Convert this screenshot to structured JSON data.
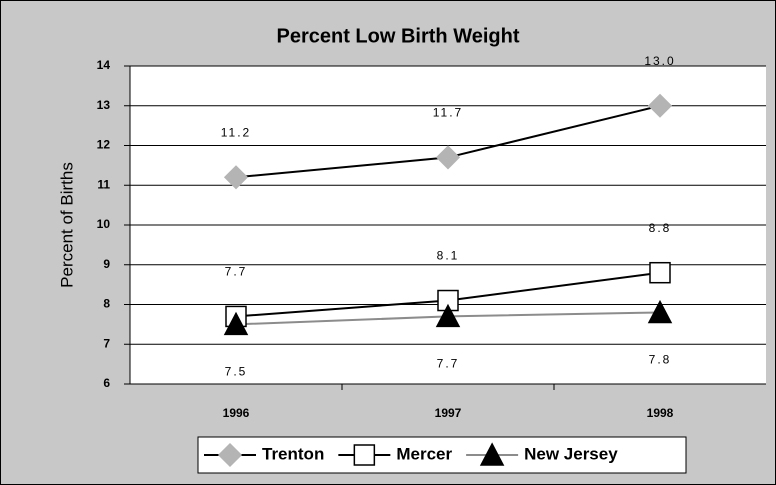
{
  "chart_data": {
    "type": "line",
    "title": "Percent Low Birth Weight",
    "y_label": "Percent of Births",
    "categories": [
      "1996",
      "1997",
      "1998"
    ],
    "series": [
      {
        "name": "Trenton",
        "color": "#b4b4b4",
        "line_color": "#000000",
        "marker": "diamond",
        "label_position": "above",
        "values": [
          11.2,
          11.7,
          13.0
        ],
        "value_labels": [
          "11.2",
          "11.7",
          "13.0"
        ]
      },
      {
        "name": "Mercer",
        "color": "#ffffff",
        "line_color": "#000000",
        "marker": "square",
        "label_position": "above",
        "values": [
          7.7,
          8.1,
          8.8
        ]
      },
      {
        "name": "New Jersey",
        "color": "#000000",
        "line_color": "#8c8c8c",
        "marker": "triangle",
        "label_position": "below",
        "values": [
          7.5,
          7.7,
          7.8
        ]
      }
    ],
    "ylim": [
      6,
      14
    ],
    "yticks": [
      6,
      7,
      8,
      9,
      10,
      11,
      12,
      13,
      14
    ],
    "grid": true,
    "legend": "bottom"
  }
}
